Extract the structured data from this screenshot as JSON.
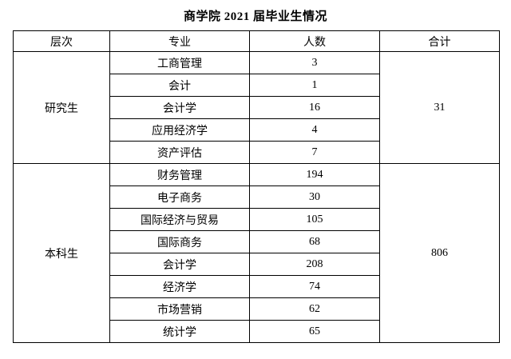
{
  "page": {
    "title": "商学院 2021 届毕业生情况"
  },
  "colors": {
    "background": "#ffffff",
    "text": "#000000",
    "border": "#000000"
  },
  "table": {
    "headers": [
      "层次",
      "专业",
      "人数",
      "合计"
    ],
    "sections": [
      {
        "level": "研究生",
        "total": "31",
        "rows": [
          {
            "major": "工商管理",
            "count": "3"
          },
          {
            "major": "会计",
            "count": "1"
          },
          {
            "major": "会计学",
            "count": "16"
          },
          {
            "major": "应用经济学",
            "count": "4"
          },
          {
            "major": "资产评估",
            "count": "7"
          }
        ]
      },
      {
        "level": "本科生",
        "total": "806",
        "rows": [
          {
            "major": "财务管理",
            "count": "194"
          },
          {
            "major": "电子商务",
            "count": "30"
          },
          {
            "major": "国际经济与贸易",
            "count": "105"
          },
          {
            "major": "国际商务",
            "count": "68"
          },
          {
            "major": "会计学",
            "count": "208"
          },
          {
            "major": "经济学",
            "count": "74"
          },
          {
            "major": "市场营销",
            "count": "62"
          },
          {
            "major": "统计学",
            "count": "65"
          }
        ]
      }
    ]
  }
}
